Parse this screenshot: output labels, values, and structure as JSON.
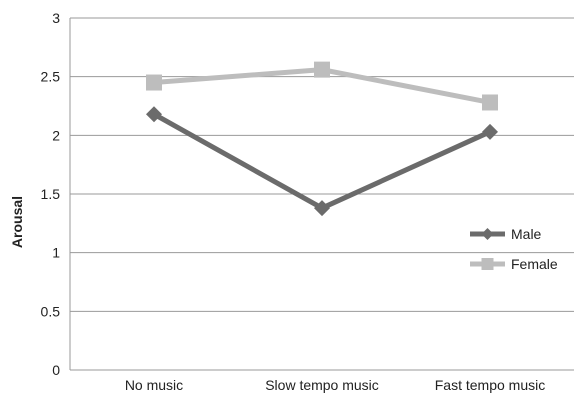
{
  "chart_data": {
    "type": "line",
    "title": "",
    "xlabel": "",
    "ylabel": "Arousal",
    "ylim": [
      0,
      3
    ],
    "yticks": [
      "0",
      "0.5",
      "1",
      "1.5",
      "2",
      "2.5",
      "3"
    ],
    "categories": [
      "No music",
      "Slow tempo music",
      "Fast tempo music"
    ],
    "grid": true,
    "legend_position": "right",
    "series": [
      {
        "name": "Male",
        "values": [
          2.18,
          1.38,
          2.03
        ],
        "color": "#6b6b6b",
        "marker": "diamond"
      },
      {
        "name": "Female",
        "values": [
          2.45,
          2.56,
          2.28
        ],
        "color": "#bdbdbd",
        "marker": "square"
      }
    ]
  }
}
